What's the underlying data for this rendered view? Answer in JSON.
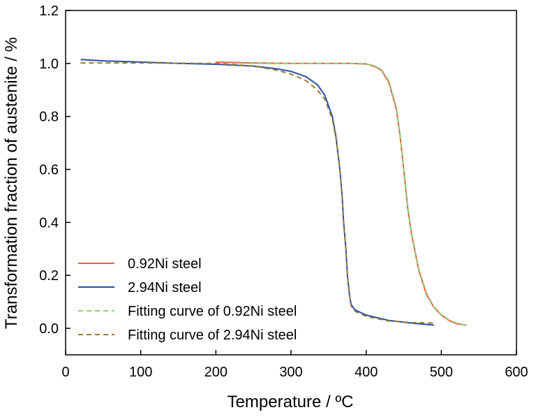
{
  "chart_data": {
    "type": "line",
    "xlabel": "Temperature / ºC",
    "ylabel": "Transformation fraction of austenite / %",
    "xlim": [
      0,
      600
    ],
    "ylim": [
      -0.1,
      1.2
    ],
    "xticks": [
      0,
      100,
      200,
      300,
      400,
      500,
      600
    ],
    "yticks": [
      0.0,
      0.2,
      0.4,
      0.6,
      0.8,
      1.0,
      1.2
    ],
    "xtick_labels": [
      "0",
      "100",
      "200",
      "300",
      "400",
      "500",
      "600"
    ],
    "ytick_labels": [
      "0.0",
      "0.2",
      "0.4",
      "0.6",
      "0.8",
      "1.0",
      "1.2"
    ],
    "grid": false,
    "legend_position": "bottom-left",
    "series": [
      {
        "name": "0.92Ni steel",
        "color": "#e8623a",
        "style": "solid",
        "x": [
          200,
          250,
          300,
          350,
          380,
          400,
          410,
          420,
          430,
          440,
          445,
          450,
          455,
          460,
          470,
          480,
          490,
          500,
          510,
          520,
          533
        ],
        "y": [
          1.005,
          1.002,
          1.0,
          1.0,
          1.0,
          0.998,
          0.99,
          0.975,
          0.93,
          0.83,
          0.73,
          0.6,
          0.46,
          0.36,
          0.22,
          0.13,
          0.08,
          0.05,
          0.03,
          0.018,
          0.012
        ]
      },
      {
        "name": "2.94Ni steel",
        "color": "#2350a8",
        "style": "solid",
        "x": [
          20,
          50,
          100,
          150,
          200,
          250,
          280,
          300,
          320,
          335,
          345,
          355,
          360,
          365,
          368,
          370,
          373,
          375,
          378,
          380,
          385,
          400,
          430,
          460,
          490
        ],
        "y": [
          1.015,
          1.01,
          1.005,
          1.0,
          0.997,
          0.99,
          0.98,
          0.97,
          0.95,
          0.92,
          0.88,
          0.8,
          0.72,
          0.6,
          0.5,
          0.4,
          0.3,
          0.2,
          0.12,
          0.09,
          0.07,
          0.05,
          0.03,
          0.02,
          0.012
        ]
      },
      {
        "name": "Fitting curve of 0.92Ni steel",
        "color": "#8cd27a",
        "style": "dashed",
        "x": [
          200,
          250,
          300,
          350,
          380,
          400,
          410,
          420,
          430,
          440,
          445,
          450,
          455,
          460,
          470,
          480,
          490,
          500,
          510,
          520,
          533
        ],
        "y": [
          1.0,
          1.0,
          1.0,
          1.0,
          1.0,
          0.998,
          0.992,
          0.978,
          0.935,
          0.835,
          0.735,
          0.605,
          0.465,
          0.365,
          0.225,
          0.135,
          0.082,
          0.052,
          0.032,
          0.02,
          0.012
        ]
      },
      {
        "name": "Fitting curve of 2.94Ni steel",
        "color": "#9c7a2e",
        "style": "dashed",
        "x": [
          20,
          50,
          100,
          150,
          200,
          250,
          280,
          300,
          320,
          335,
          345,
          355,
          360,
          365,
          368,
          370,
          373,
          375,
          378,
          380,
          385,
          400,
          430,
          460,
          490
        ],
        "y": [
          1.002,
          1.002,
          1.002,
          1.001,
          1.0,
          0.99,
          0.975,
          0.96,
          0.935,
          0.9,
          0.865,
          0.79,
          0.715,
          0.6,
          0.5,
          0.4,
          0.3,
          0.2,
          0.12,
          0.085,
          0.065,
          0.045,
          0.028,
          0.022,
          0.02
        ]
      }
    ]
  }
}
